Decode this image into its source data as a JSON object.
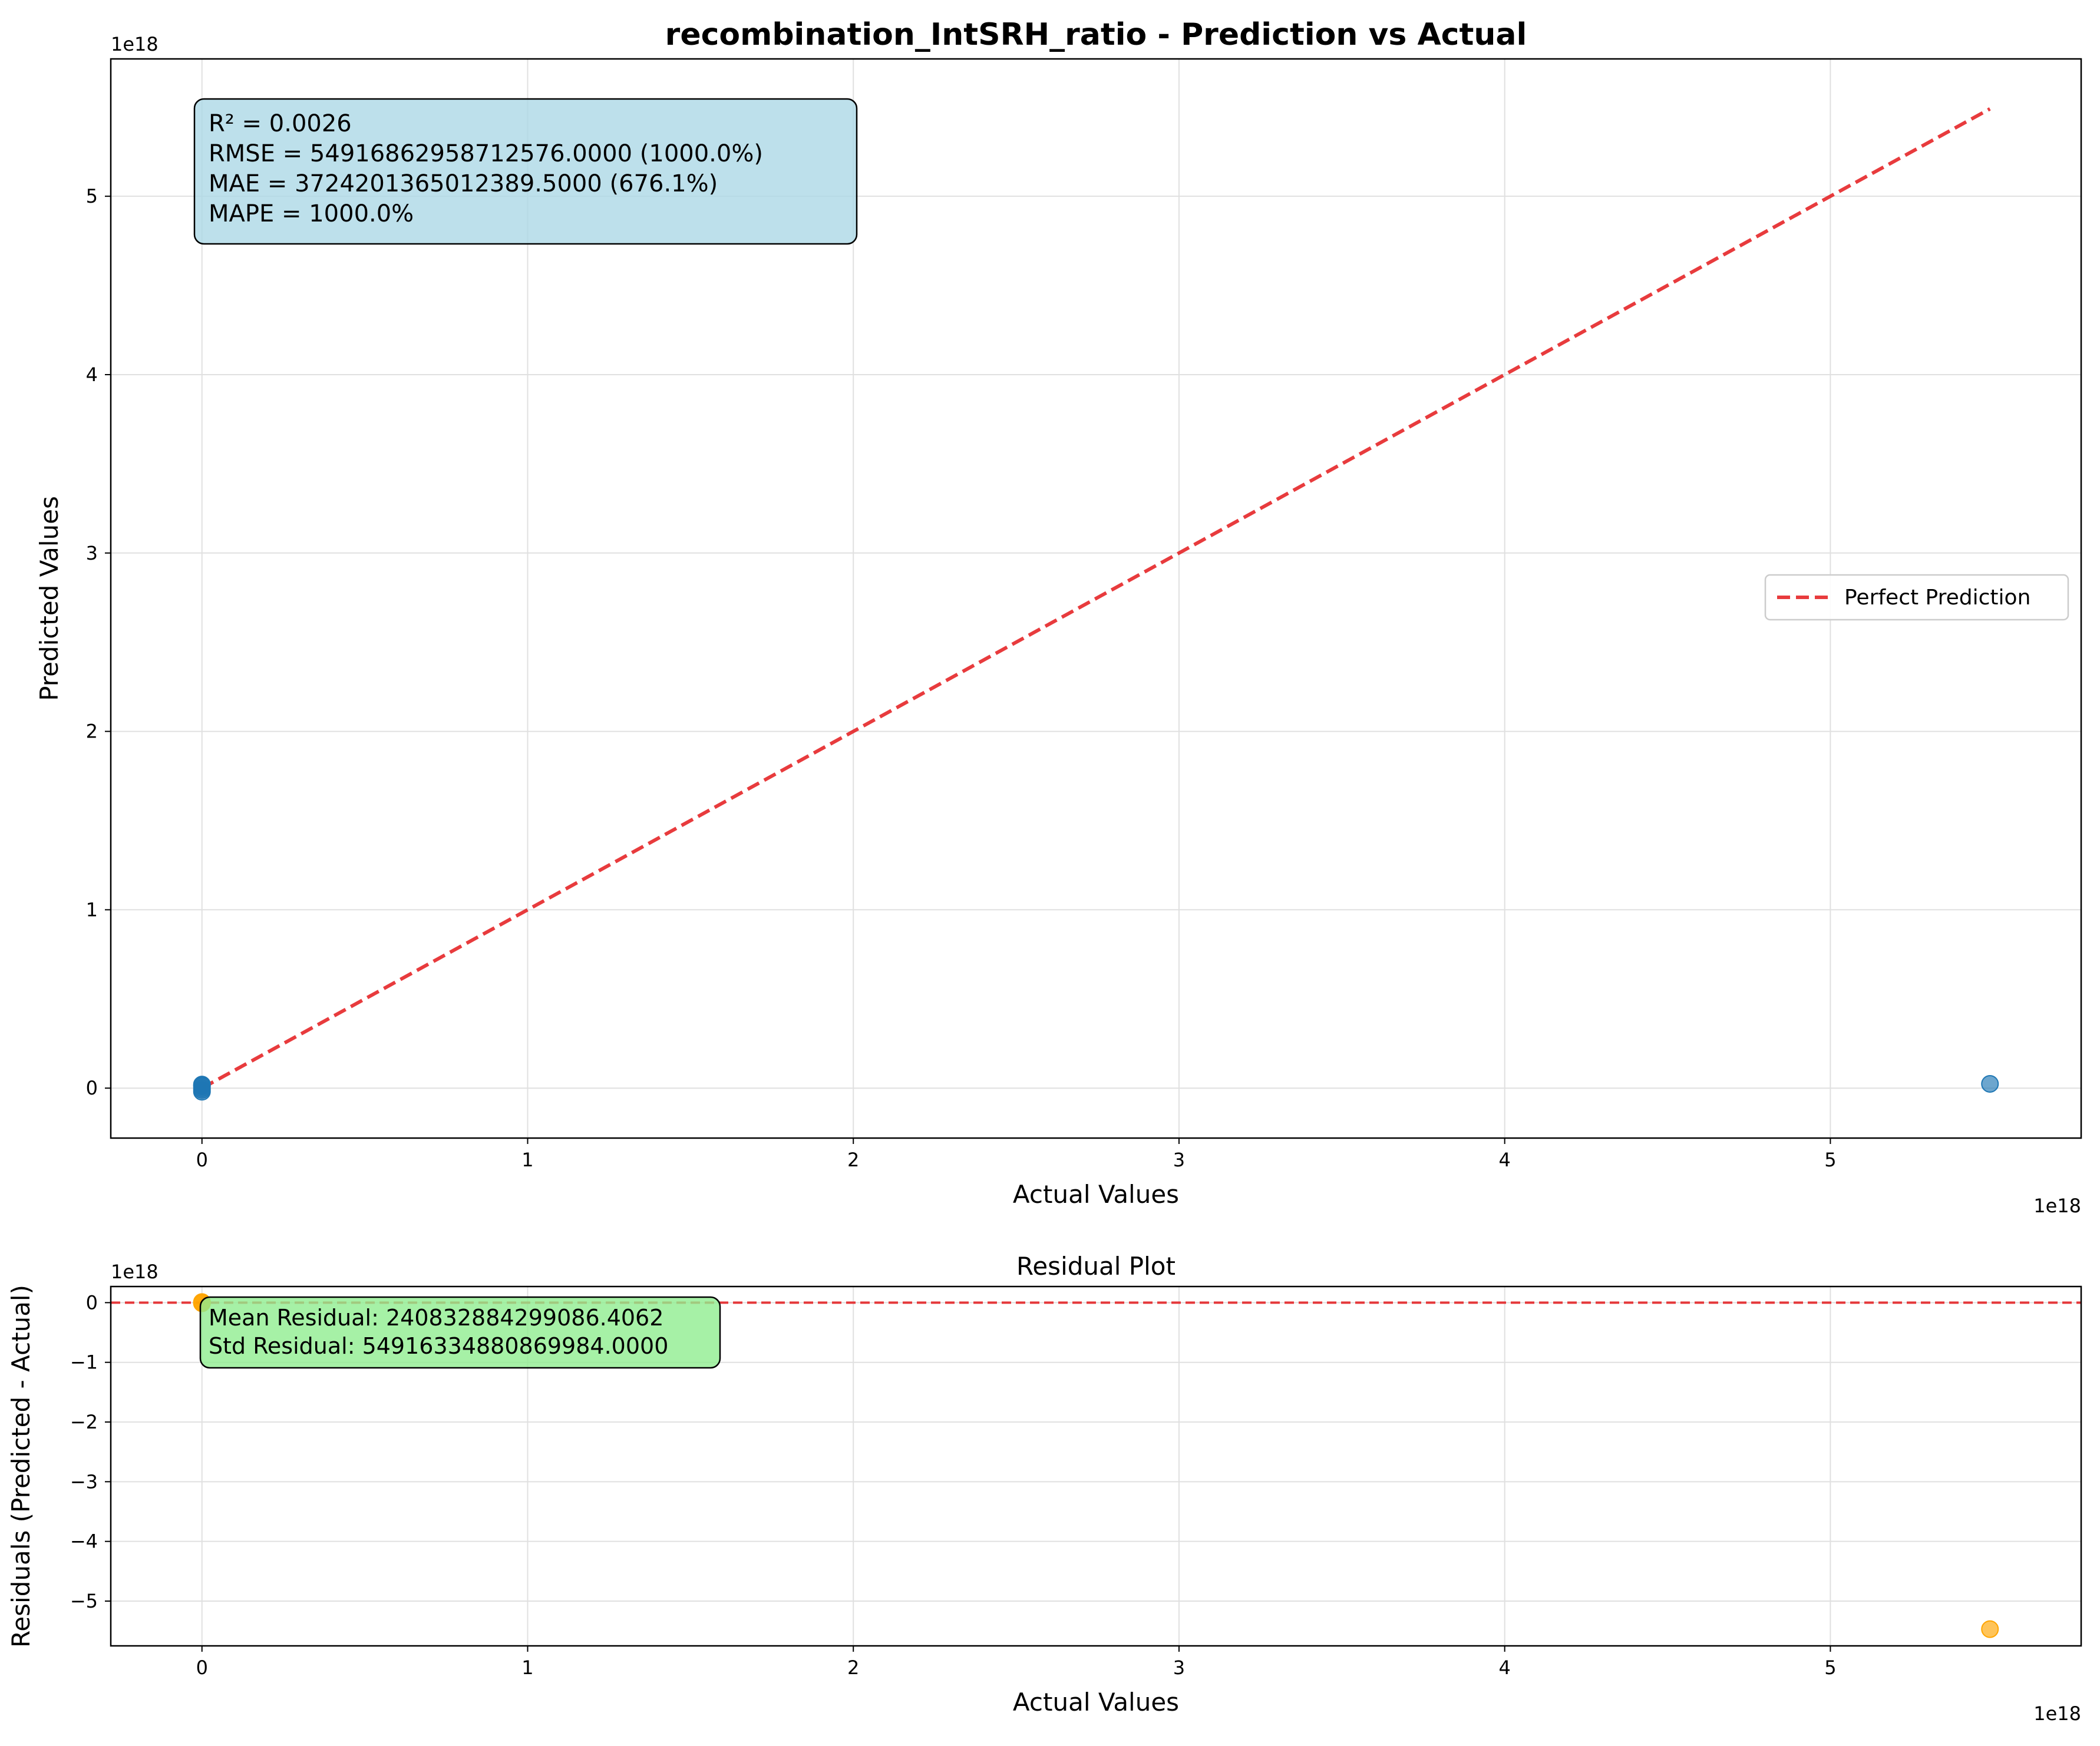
{
  "chart_data": [
    {
      "type": "scatter",
      "title": "recombination_IntSRH_ratio - Prediction vs Actual",
      "xlabel": "Actual Values",
      "ylabel": "Predicted Values",
      "x_offset_label": "1e18",
      "y_offset_label": "1e18",
      "xlim": [
        -0.28,
        5.77
      ],
      "ylim": [
        -0.28,
        5.77
      ],
      "xticks": [
        0,
        1,
        2,
        3,
        4,
        5
      ],
      "yticks": [
        0,
        1,
        2,
        3,
        4,
        5
      ],
      "grid": true,
      "point_color": "#1f77b4",
      "series": [
        {
          "x": [
            0,
            0,
            0,
            0,
            0,
            0,
            5.49
          ],
          "y": [
            0.02,
            -0.01,
            0.015,
            -0.02,
            0.01,
            0,
            0.024
          ]
        }
      ],
      "reference_line": {
        "name": "Perfect Prediction",
        "x": [
          0,
          5.49
        ],
        "y": [
          0,
          5.49
        ],
        "color": "#e41a1c",
        "style": "dashed"
      },
      "legend": {
        "entries": [
          "Perfect Prediction"
        ],
        "position": "center-right"
      },
      "annotation": {
        "lines": [
          "R² = 0.0026",
          "RMSE = 549168629587125​76.0000 (1000.0%)",
          "MAE = 3724201365012389.5000 (676.1%)",
          "MAPE = 1000.0%"
        ],
        "background": "#add8e6"
      }
    },
    {
      "type": "scatter",
      "title": "Residual Plot",
      "xlabel": "Actual Values",
      "ylabel": "Residuals (Predicted - Actual)",
      "x_offset_label": "1e18",
      "y_offset_label": "1e18",
      "xlim": [
        -0.28,
        5.77
      ],
      "ylim": [
        -5.75,
        0.27
      ],
      "xticks": [
        0,
        1,
        2,
        3,
        4,
        5
      ],
      "yticks": [
        0,
        -1,
        -2,
        -3,
        -4,
        -5
      ],
      "grid": true,
      "point_color": "#ffa500",
      "series": [
        {
          "x": [
            0,
            0,
            0,
            5.49
          ],
          "y": [
            0.01,
            -0.01,
            0,
            -5.47
          ]
        }
      ],
      "reference_line": {
        "y": 0,
        "color": "#e41a1c",
        "style": "dashed"
      },
      "annotation": {
        "lines": [
          "Mean Residual: 240832884299086.4062",
          "Std Residual: 54916334880869984.0000"
        ],
        "background": "#90ee90"
      }
    }
  ]
}
